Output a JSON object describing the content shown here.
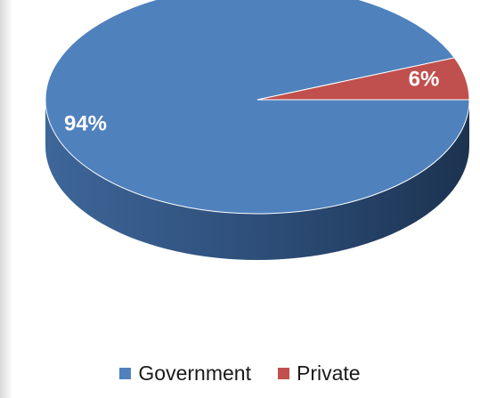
{
  "chart_data": {
    "type": "pie",
    "title": "",
    "categories": [
      "Government",
      "Private"
    ],
    "values": [
      94,
      6
    ],
    "data_labels": [
      "94%",
      "6%"
    ],
    "colors": [
      "#4f81bd",
      "#c0504d"
    ],
    "dark_colors": [
      "#2a4a72",
      "#7d2f2d"
    ],
    "legend_position": "bottom",
    "three_d": true
  }
}
